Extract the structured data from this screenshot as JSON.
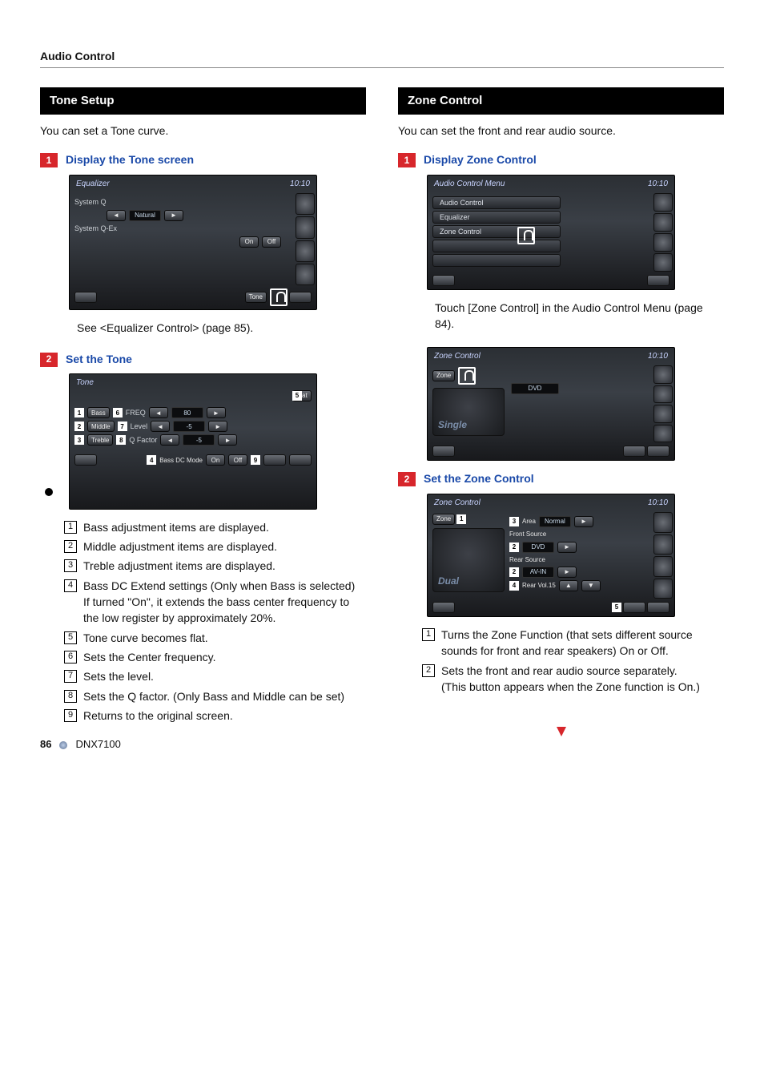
{
  "header": "Audio Control",
  "footer": {
    "page": "86",
    "model": "DNX7100"
  },
  "left": {
    "section_title": "Tone Setup",
    "intro": "You can set a Tone curve.",
    "step1": {
      "num": "1",
      "title": "Display the Tone screen"
    },
    "screen_eq": {
      "title": "Equalizer",
      "time": "10:10",
      "row1_label": "System Q",
      "row1_val": "Natural",
      "row2_label": "System Q-Ex",
      "onoff_on": "On",
      "onoff_off": "Off",
      "tone_btn": "Tone"
    },
    "note1": "See <Equalizer Control> (page 85).",
    "step2": {
      "num": "2",
      "title": "Set the Tone"
    },
    "screen_tone": {
      "title": "Tone",
      "flat": "Flat",
      "row_bass": "Bass",
      "row_middle": "Middle",
      "row_treble": "Treble",
      "freq": "FREQ",
      "level": "Level",
      "qfactor": "Q Factor",
      "val_bass": "80",
      "val_mid": "-5",
      "val_treble": "-5",
      "dcmode": "Bass DC Mode",
      "on": "On",
      "off": "Off"
    },
    "items": [
      "Bass adjustment items are displayed.",
      "Middle adjustment items are displayed.",
      "Treble adjustment items are displayed.",
      "Bass DC Extend settings (Only when Bass is selected)\nIf turned \"On\", it extends the bass center frequency to the low register by approximately 20%.",
      "Tone curve becomes flat.",
      "Sets the Center frequency.",
      "Sets the level.",
      "Sets the Q factor. (Only Bass and Middle can be set)",
      "Returns to the original screen."
    ]
  },
  "right": {
    "section_title": "Zone Control",
    "intro": "You can set the front and rear audio source.",
    "step1": {
      "num": "1",
      "title": "Display Zone Control"
    },
    "screen_menu": {
      "title": "Audio Control Menu",
      "time": "10:10",
      "items": [
        "Audio Control",
        "Equalizer",
        "Zone Control",
        "",
        ""
      ]
    },
    "note1": "Touch [Zone Control] in the Audio Control Menu (page 84).",
    "screen_zone1": {
      "title": "Zone Control",
      "time": "10:10",
      "zone_btn": "Zone",
      "dvd": "DVD",
      "mode_text": "Single"
    },
    "step2": {
      "num": "2",
      "title": "Set the Zone Control"
    },
    "screen_zone2": {
      "title": "Zone Control",
      "time": "10:10",
      "zone_btn": "Zone",
      "area": "Area",
      "area_val": "Normal",
      "front_src": "Front Source",
      "front_val": "DVD",
      "rear_src": "Rear Source",
      "rear_val": "AV-IN",
      "rear_vol": "Rear Vol.15",
      "mode_text": "Dual"
    },
    "items": [
      "Turns the Zone Function (that sets different source sounds for front and rear speakers) On or Off.",
      "Sets the front and rear audio source separately.\n(This button appears when the Zone function is On.)"
    ]
  }
}
